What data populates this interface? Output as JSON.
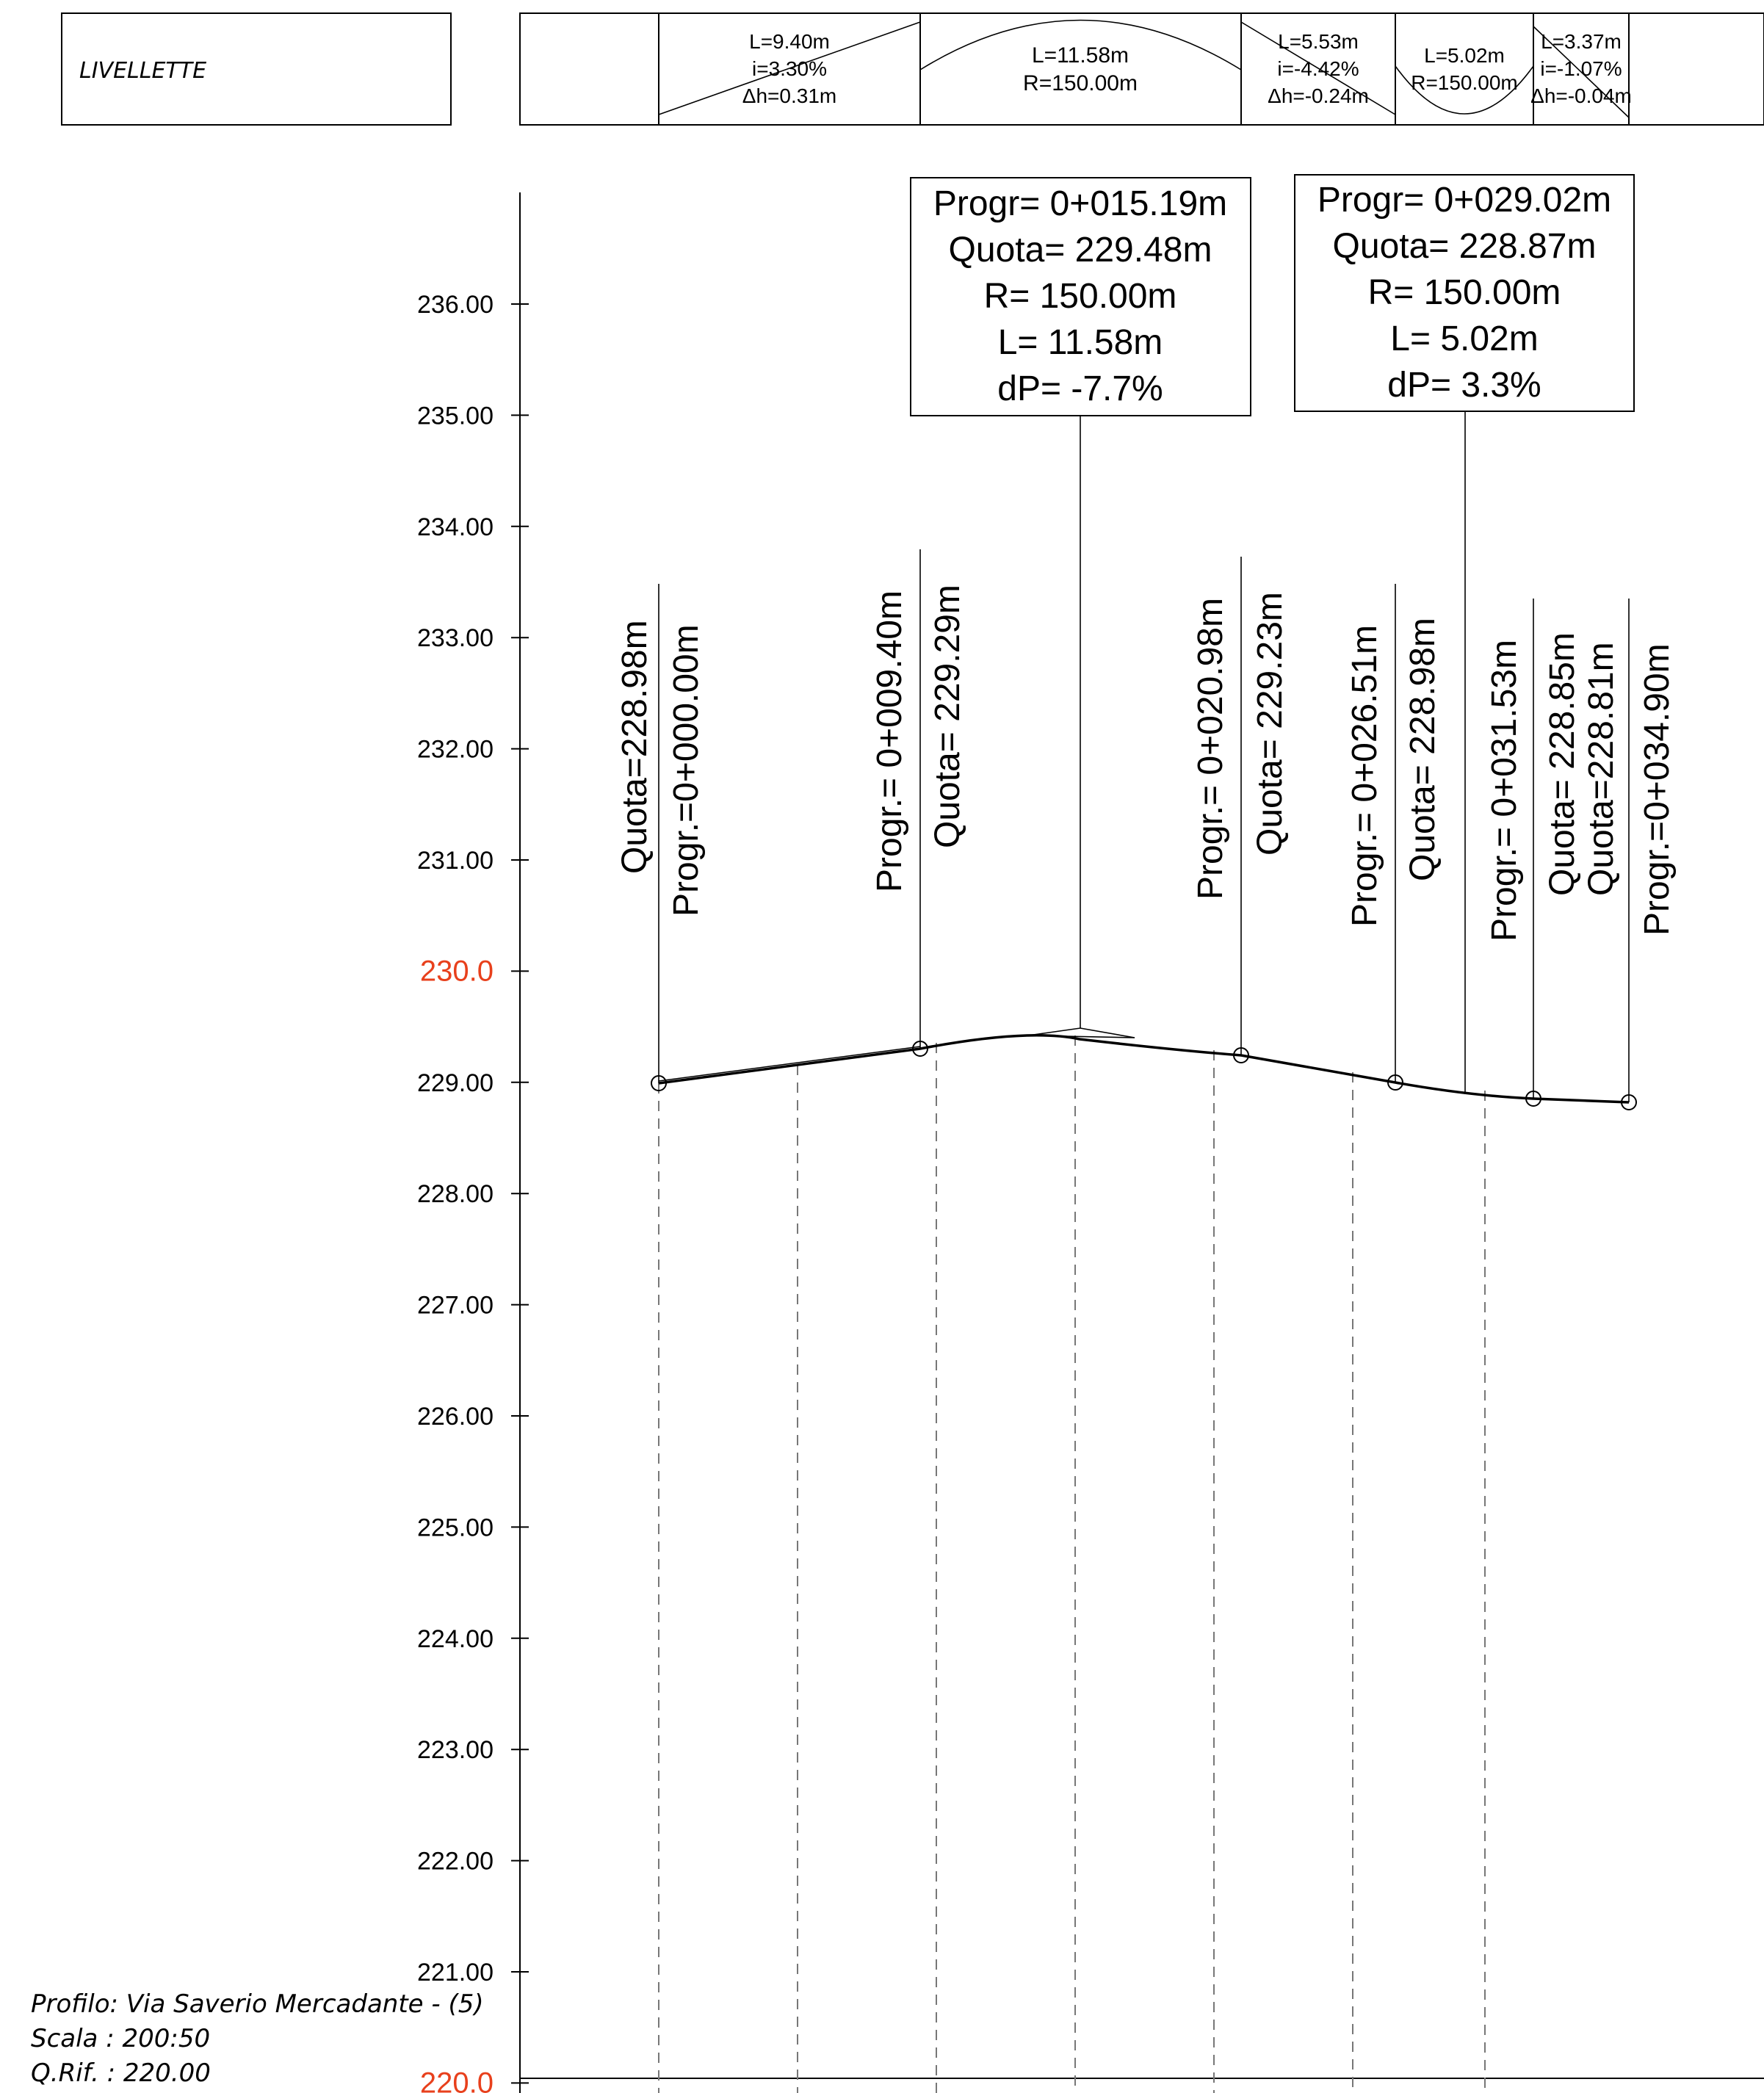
{
  "header": {
    "title": "LIVELLETTE"
  },
  "livellette": [
    {
      "kind": "tangent",
      "L": "L=9.40m",
      "i": "i=3.30%",
      "dh": "Δh=0.31m"
    },
    {
      "kind": "curve",
      "L": "L=11.58m",
      "R": "R=150.00m"
    },
    {
      "kind": "tangent",
      "L": "L=5.53m",
      "i": "i=-4.42%",
      "dh": "Δh=-0.24m"
    },
    {
      "kind": "curve",
      "L": "L=5.02m",
      "R": "R=150.00m"
    },
    {
      "kind": "tangent",
      "L": "L=3.37m",
      "i": "i=-1.07%",
      "dh": "Δh=-0.04m"
    }
  ],
  "vertex_boxes": [
    {
      "progr": "Progr= 0+015.19m",
      "quota": "Quota= 229.48m",
      "r": "R= 150.00m",
      "l": "L= 11.58m",
      "dp": "dP= -7.7%"
    },
    {
      "progr": "Progr= 0+029.02m",
      "quota": "Quota= 228.87m",
      "r": "R= 150.00m",
      "l": "L= 5.02m",
      "dp": "dP= 3.3%"
    }
  ],
  "point_labels": [
    {
      "a": "Quota=228.98m",
      "b": "Progr.=0+000.00m"
    },
    {
      "a": "Progr.= 0+009.40m",
      "b": "Quota= 229.29m"
    },
    {
      "a": "Progr.= 0+020.98m",
      "b": "Quota= 229.23m"
    },
    {
      "a": "Progr.= 0+026.51m",
      "b": "Quota= 228.98m"
    },
    {
      "a": "Progr.= 0+031.53m",
      "b": "Quota= 228.85m"
    },
    {
      "a": "Quota=228.81m",
      "b": "Progr.=0+034.90m"
    }
  ],
  "y_axis": {
    "ticks": [
      "236.00",
      "235.00",
      "234.00",
      "233.00",
      "232.00",
      "231.00",
      "230.0",
      "229.00",
      "228.00",
      "227.00",
      "226.00",
      "225.00",
      "224.00",
      "223.00",
      "222.00",
      "221.00",
      "220.0"
    ],
    "highlight_color": "#e8401c"
  },
  "footer": {
    "profile": "Profilo: Via Saverio Mercadante - (5)",
    "scale": "Scala : 200:50",
    "ref": "Q.Rif. : 220.00"
  }
}
